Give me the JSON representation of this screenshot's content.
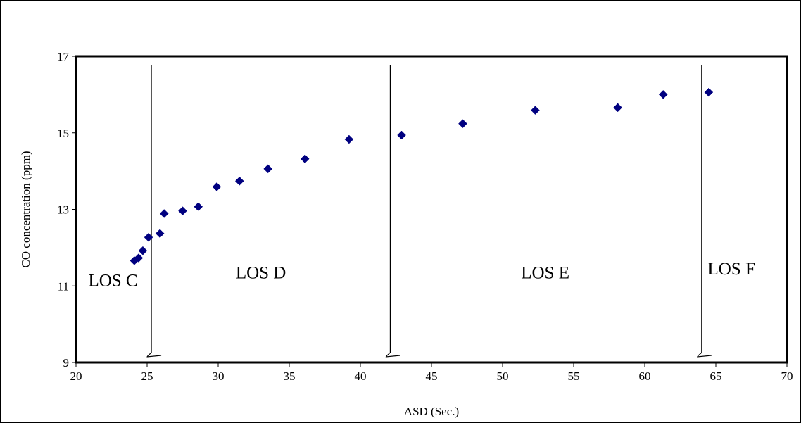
{
  "chart_data": {
    "type": "scatter",
    "title": "",
    "xlabel": "ASD (Sec.)",
    "ylabel": "CO concentration (ppm)",
    "xlim": [
      20,
      70
    ],
    "ylim": [
      9,
      17
    ],
    "x_ticks": [
      20,
      25,
      30,
      35,
      40,
      45,
      50,
      55,
      60,
      65,
      70
    ],
    "y_ticks": [
      9,
      11,
      13,
      15,
      17
    ],
    "grid": false,
    "legend": "none",
    "marker": "diamond",
    "marker_color": "#000080",
    "points": [
      {
        "x": 24.1,
        "y": 11.66
      },
      {
        "x": 24.4,
        "y": 11.73
      },
      {
        "x": 24.7,
        "y": 11.92
      },
      {
        "x": 25.1,
        "y": 12.27
      },
      {
        "x": 25.9,
        "y": 12.37
      },
      {
        "x": 26.2,
        "y": 12.89
      },
      {
        "x": 27.5,
        "y": 12.96
      },
      {
        "x": 28.6,
        "y": 13.07
      },
      {
        "x": 29.9,
        "y": 13.59
      },
      {
        "x": 31.5,
        "y": 13.74
      },
      {
        "x": 33.5,
        "y": 14.06
      },
      {
        "x": 36.1,
        "y": 14.32
      },
      {
        "x": 39.2,
        "y": 14.83
      },
      {
        "x": 42.9,
        "y": 14.94
      },
      {
        "x": 47.2,
        "y": 15.24
      },
      {
        "x": 52.3,
        "y": 15.59
      },
      {
        "x": 58.1,
        "y": 15.66
      },
      {
        "x": 61.3,
        "y": 16.0
      },
      {
        "x": 64.5,
        "y": 16.06
      }
    ],
    "boundaries": [
      25.3,
      42.1,
      64.0
    ],
    "regions": [
      {
        "label": "LOS C",
        "x": 22.6,
        "y": 11.0
      },
      {
        "label": "LOS D",
        "x": 33.0,
        "y": 11.2
      },
      {
        "label": "LOS E",
        "x": 53.0,
        "y": 11.2
      },
      {
        "label": "LOS F",
        "x": 66.1,
        "y": 11.3
      }
    ]
  }
}
